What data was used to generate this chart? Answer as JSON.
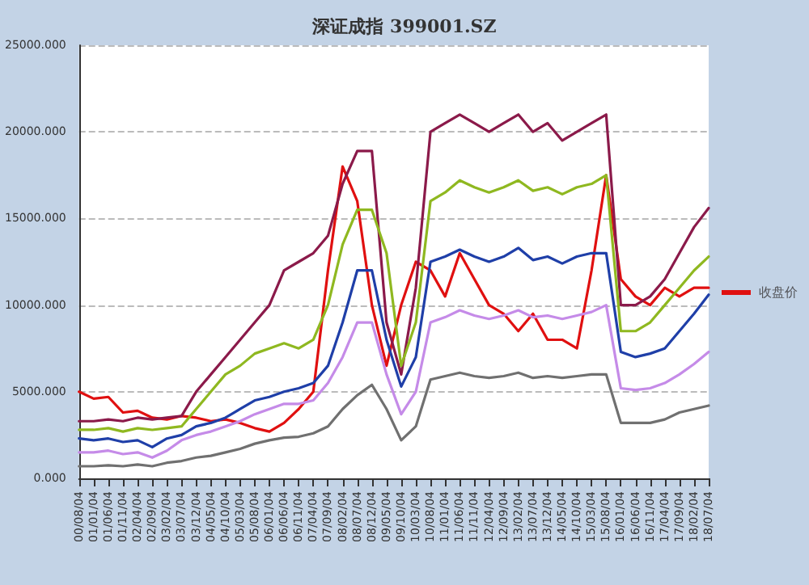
{
  "chart_data": {
    "type": "line",
    "title": "深证成指 399001.SZ",
    "categories": [
      "00/08/04",
      "01/01/04",
      "01/06/04",
      "01/11/04",
      "02/04/04",
      "02/09/04",
      "03/02/04",
      "03/07/04",
      "03/12/04",
      "04/05/04",
      "04/10/04",
      "05/03/04",
      "05/08/04",
      "06/01/04",
      "06/06/04",
      "06/11/04",
      "07/04/04",
      "07/09/04",
      "08/02/04",
      "08/07/04",
      "08/12/04",
      "09/05/04",
      "09/10/04",
      "10/03/04",
      "10/08/04",
      "11/01/04",
      "11/06/04",
      "11/11/04",
      "12/04/04",
      "12/09/04",
      "13/02/04",
      "13/07/04",
      "13/12/04",
      "14/05/04",
      "14/10/04",
      "15/03/04",
      "15/08/04",
      "16/01/04",
      "16/06/04",
      "16/11/04",
      "17/04/04",
      "17/09/04",
      "18/02/04",
      "18/07/04"
    ],
    "series": [
      {
        "name": "收盘价",
        "color": "#e01010",
        "values": [
          5000,
          4600,
          4700,
          3800,
          3900,
          3500,
          3400,
          3600,
          3500,
          3300,
          3400,
          3200,
          2900,
          2700,
          3200,
          4000,
          5000,
          12000,
          18000,
          16000,
          10000,
          6500,
          10000,
          12500,
          12000,
          10500,
          13000,
          11500,
          10000,
          9500,
          8500,
          9500,
          8000,
          8000,
          7500,
          12000,
          17500,
          11500,
          10500,
          10000,
          11000,
          10500,
          11000,
          11000
        ]
      },
      {
        "color": "#8b1a4a",
        "values": [
          3300,
          3300,
          3400,
          3300,
          3500,
          3400,
          3500,
          3600,
          5000,
          6000,
          7000,
          8000,
          9000,
          10000,
          12000,
          12500,
          13000,
          14000,
          17000,
          18900,
          18900,
          9000,
          6000,
          11000,
          20000,
          20500,
          21000,
          20500,
          20000,
          20500,
          21000,
          20000,
          20500,
          19500,
          20000,
          20500,
          21000,
          10000,
          10000,
          10500,
          11500,
          13000,
          14500,
          15600
        ]
      },
      {
        "color": "#8fb820",
        "values": [
          2800,
          2800,
          2900,
          2700,
          2900,
          2800,
          2900,
          3000,
          4000,
          5000,
          6000,
          6500,
          7200,
          7500,
          7800,
          7500,
          8000,
          10000,
          13500,
          15500,
          15500,
          13000,
          6500,
          9000,
          16000,
          16500,
          17200,
          16800,
          16500,
          16800,
          17200,
          16600,
          16800,
          16400,
          16800,
          17000,
          17500,
          8500,
          8500,
          9000,
          10000,
          11000,
          12000,
          12800
        ]
      },
      {
        "color": "#1f3fa8",
        "values": [
          2300,
          2200,
          2300,
          2100,
          2200,
          1800,
          2300,
          2500,
          3000,
          3200,
          3500,
          4000,
          4500,
          4700,
          5000,
          5200,
          5500,
          6500,
          9000,
          12000,
          12000,
          8000,
          5300,
          7000,
          12500,
          12800,
          13200,
          12800,
          12500,
          12800,
          13300,
          12600,
          12800,
          12400,
          12800,
          13000,
          13000,
          7300,
          7000,
          7200,
          7500,
          8500,
          9500,
          10600
        ]
      },
      {
        "color": "#c58be8",
        "values": [
          1500,
          1500,
          1600,
          1400,
          1500,
          1200,
          1600,
          2200,
          2500,
          2700,
          3000,
          3300,
          3700,
          4000,
          4300,
          4300,
          4500,
          5500,
          7000,
          9000,
          9000,
          6000,
          3700,
          5000,
          9000,
          9300,
          9700,
          9400,
          9200,
          9400,
          9700,
          9300,
          9400,
          9200,
          9400,
          9600,
          10000,
          5200,
          5100,
          5200,
          5500,
          6000,
          6600,
          7300
        ]
      },
      {
        "color": "#707070",
        "values": [
          700,
          700,
          750,
          700,
          800,
          700,
          900,
          1000,
          1200,
          1300,
          1500,
          1700,
          2000,
          2200,
          2350,
          2400,
          2600,
          3000,
          4000,
          4800,
          5400,
          4000,
          2200,
          3000,
          5700,
          5900,
          6100,
          5900,
          5800,
          5900,
          6100,
          5800,
          5900,
          5800,
          5900,
          6000,
          6000,
          3200,
          3200,
          3200,
          3400,
          3800,
          4000,
          4200
        ]
      }
    ],
    "ylim": [
      0,
      25000
    ],
    "yticks": [
      {
        "value": 0,
        "label": "0.000"
      },
      {
        "value": 5000,
        "label": "5000.000"
      },
      {
        "value": 10000,
        "label": "10000.000"
      },
      {
        "value": 15000,
        "label": "15000.000"
      },
      {
        "value": 20000,
        "label": "20000.000"
      },
      {
        "value": 25000,
        "label": "25000.000"
      }
    ],
    "grid": "y",
    "legend": "right",
    "marker": "none",
    "line_style": "solid"
  }
}
